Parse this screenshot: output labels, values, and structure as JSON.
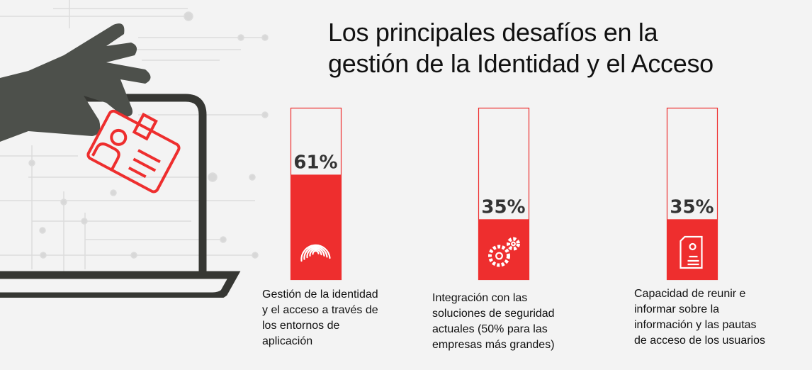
{
  "title_lines": [
    "Los principales desafíos en la",
    "gestión de la Identidad y el Acceso"
  ],
  "colors": {
    "accent": "#ee2e2e",
    "dark": "#4d504b",
    "background": "#f3f3f3"
  },
  "chart_data": {
    "type": "bar",
    "title": "Los principales desafíos en la gestión de la Identidad y el Acceso",
    "ylim": [
      0,
      100
    ],
    "categories": [
      "Gestión de la identidad y el acceso a través de los entornos de aplicación",
      "Integración con las soluciones de seguridad actuales (50% para las empresas más grandes)",
      "Capacidad de reunir e informar sobre la información y las pautas de acceso de los usuarios"
    ],
    "values": [
      61,
      35,
      35
    ],
    "labels": [
      "61%",
      "35%",
      "35%"
    ],
    "icons": [
      "fingerprint-icon",
      "gears-icon",
      "document-user-icon"
    ]
  },
  "captions": [
    [
      "Gestión de la identidad",
      "y el acceso a través de",
      "los entornos de",
      "aplicación"
    ],
    [
      "Integración con las",
      "soluciones de seguridad",
      "actuales (50% para las",
      "empresas más grandes)"
    ],
    [
      "Capacidad de reunir e",
      "informar sobre la",
      "información y las pautas",
      "de acceso de los usuarios"
    ]
  ]
}
